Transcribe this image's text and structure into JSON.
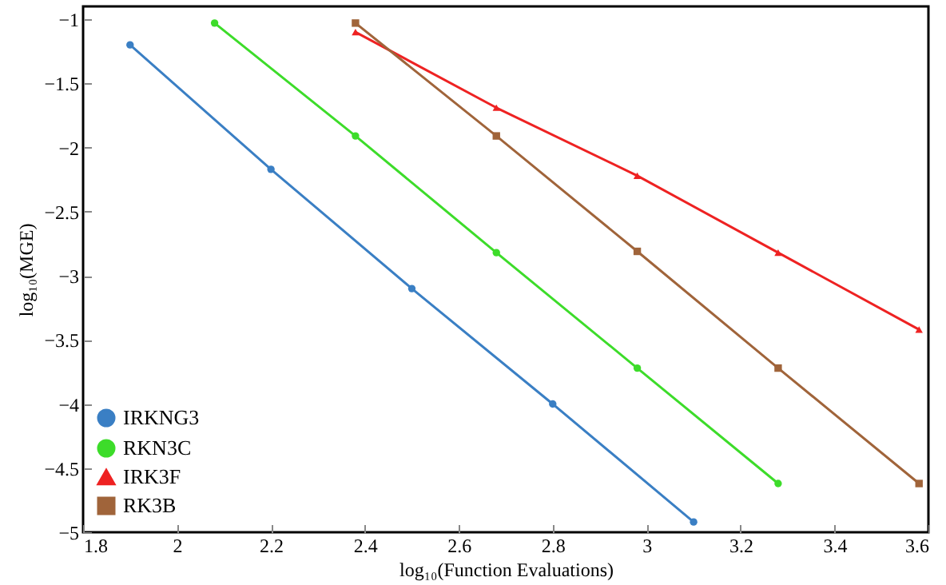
{
  "chart_data": {
    "type": "line",
    "xlabel": "log₁₀(Function Evaluations)",
    "ylabel": "log₁₀(MGE)",
    "xlim": [
      1.8,
      3.6
    ],
    "xticks": [
      1.8,
      2,
      2.2,
      2.4,
      2.6,
      2.8,
      3,
      3.2,
      3.4,
      3.6
    ],
    "ylim": [
      -5,
      -0.9
    ],
    "yticks": [
      -5,
      -4.5,
      -4,
      -3.5,
      -3,
      -2.5,
      -2,
      -1.5,
      -1
    ],
    "grid": false,
    "legend": "bottom left",
    "line_style": "solid",
    "series": [
      {
        "name": "IRKNG3",
        "color": "#3a7fc4",
        "marker": "circle",
        "x": [
          1.9,
          2.2,
          2.5,
          2.8,
          3.1
        ],
        "values": [
          -1.2,
          -2.17,
          -3.1,
          -4.0,
          -4.92
        ]
      },
      {
        "name": "RKN3C",
        "color": "#3ddc2a",
        "marker": "circle",
        "x": [
          2.08,
          2.38,
          2.68,
          2.98,
          3.28
        ],
        "values": [
          -1.03,
          -1.91,
          -2.82,
          -3.72,
          -4.62
        ]
      },
      {
        "name": "IRK3F",
        "color": "#ee2222",
        "marker": "triangle",
        "x": [
          2.38,
          2.68,
          2.98,
          3.28,
          3.58
        ],
        "values": [
          -1.1,
          -1.69,
          -2.22,
          -2.82,
          -3.42
        ]
      },
      {
        "name": "RK3B",
        "color": "#a0643a",
        "marker": "square",
        "x": [
          2.38,
          2.68,
          2.98,
          3.28,
          3.58
        ],
        "values": [
          -1.03,
          -1.91,
          -2.81,
          -3.72,
          -4.62
        ]
      }
    ]
  }
}
